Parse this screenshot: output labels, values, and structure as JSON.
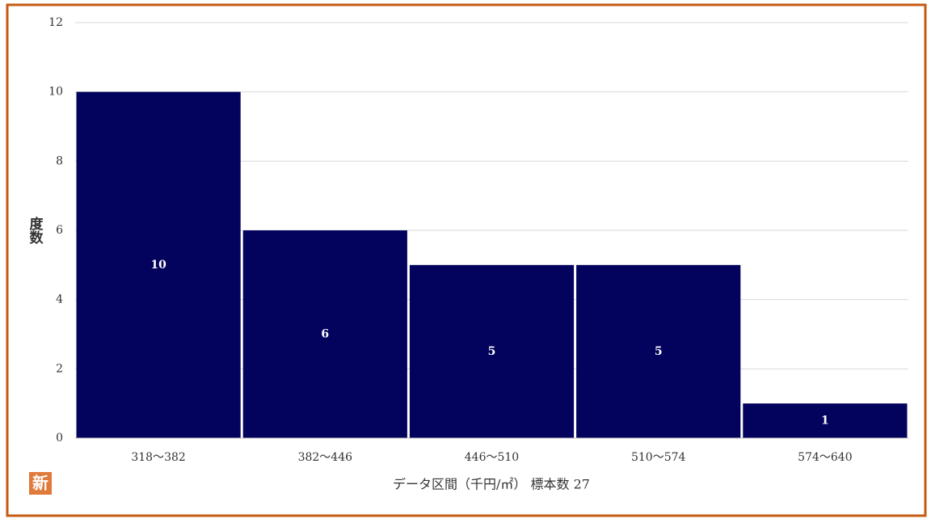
{
  "chart_data": {
    "type": "bar",
    "y_label": "度数",
    "x_label": "データ区間（千円/㎡） 標本数 27",
    "categories": [
      "318～382",
      "382～446",
      "446～510",
      "510～574",
      "574～640"
    ],
    "values": [
      10,
      6,
      5,
      5,
      1
    ],
    "color": "#03035e",
    "ylim": [
      0,
      12
    ],
    "yticks": [
      0,
      2,
      4,
      6,
      8,
      10,
      12
    ],
    "grid": true,
    "data_labels": true
  },
  "badge": "新"
}
